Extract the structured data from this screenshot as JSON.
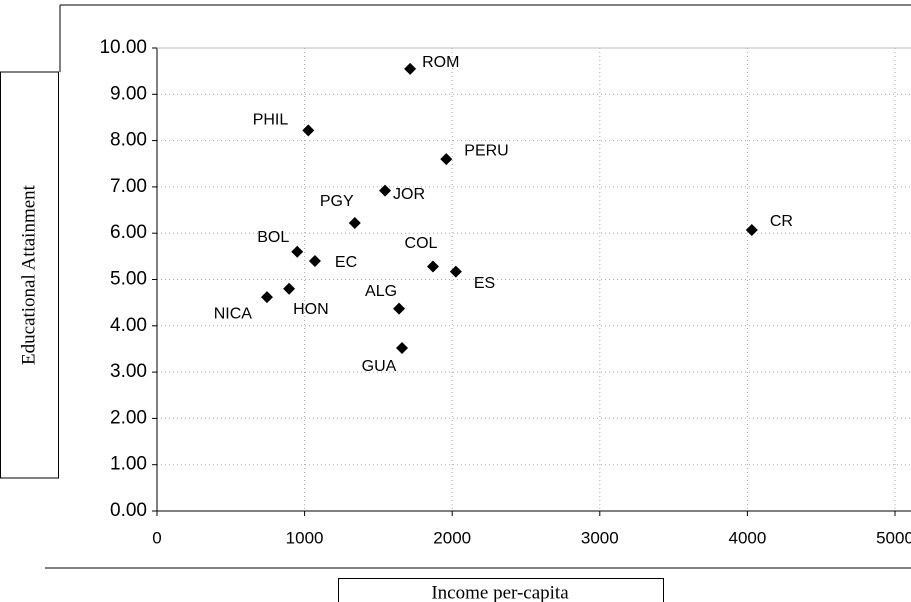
{
  "chart_data": {
    "type": "scatter",
    "x_label": "Income per-capita",
    "y_label": "Educational Attainment",
    "labels": [
      "ROM",
      "PHIL",
      "PERU",
      "JOR",
      "PGY",
      "CR",
      "BOL",
      "EC",
      "COL",
      "ES",
      "NICA",
      "HON",
      "ALG",
      "GUA"
    ],
    "x": [
      1715,
      1025,
      1960,
      1545,
      1340,
      4030,
      950,
      1070,
      1870,
      2025,
      745,
      895,
      1640,
      1660
    ],
    "y": [
      9.55,
      8.22,
      7.6,
      6.92,
      6.22,
      6.07,
      5.6,
      5.4,
      5.28,
      5.17,
      4.62,
      4.8,
      4.37,
      3.52
    ],
    "color": "#000000",
    "xlim": [
      0,
      5000
    ],
    "xticks": [
      0,
      1000,
      2000,
      3000,
      4000,
      5000
    ],
    "ylim": [
      0,
      10
    ],
    "yticks": [
      {
        "value": 0,
        "label": "0.00"
      },
      {
        "value": 1,
        "label": "1.00"
      },
      {
        "value": 2,
        "label": "2.00"
      },
      {
        "value": 3,
        "label": "3.00"
      },
      {
        "value": 4,
        "label": "4.00"
      },
      {
        "value": 5,
        "label": "5.00"
      },
      {
        "value": 6,
        "label": "6.00"
      },
      {
        "value": 7,
        "label": "7.00"
      },
      {
        "value": 8,
        "label": "8.00"
      },
      {
        "value": 9,
        "label": "9.00"
      },
      {
        "value": 10,
        "label": "10.00"
      }
    ],
    "grid": true
  }
}
